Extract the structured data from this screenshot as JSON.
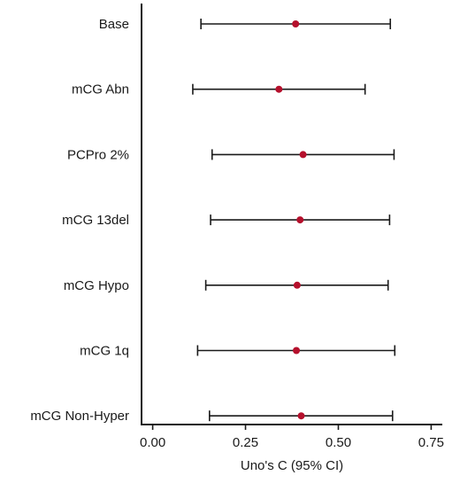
{
  "chart_data": {
    "type": "forest",
    "title": "",
    "xlabel": "Uno's C (95% CI)",
    "ylabel": "",
    "xlim": [
      -0.03,
      0.78
    ],
    "xticks": [
      0.0,
      0.25,
      0.5,
      0.75
    ],
    "xtick_labels": [
      "0.00",
      "0.25",
      "0.50",
      "0.75"
    ],
    "grid": false,
    "legend": "none",
    "point_color": "#b5102c",
    "line_color": "#1a1a1a",
    "items": [
      {
        "label": "Base",
        "estimate": 0.385,
        "lower": 0.13,
        "upper": 0.64
      },
      {
        "label": "mCG Abn",
        "estimate": 0.34,
        "lower": 0.108,
        "upper": 0.572
      },
      {
        "label": "PCPro 2%",
        "estimate": 0.405,
        "lower": 0.16,
        "upper": 0.65
      },
      {
        "label": "mCG 13del",
        "estimate": 0.397,
        "lower": 0.156,
        "upper": 0.638
      },
      {
        "label": "mCG Hypo",
        "estimate": 0.389,
        "lower": 0.143,
        "upper": 0.634
      },
      {
        "label": "mCG 1q",
        "estimate": 0.387,
        "lower": 0.121,
        "upper": 0.652
      },
      {
        "label": "mCG Non-Hyper",
        "estimate": 0.4,
        "lower": 0.153,
        "upper": 0.646
      }
    ]
  }
}
